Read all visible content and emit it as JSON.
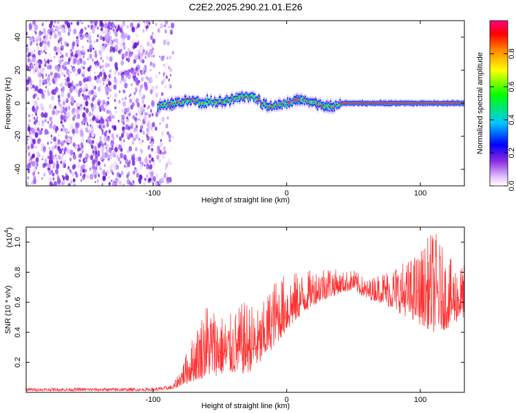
{
  "title": "C2E2.2025.290.21.01.E26",
  "chart_data": [
    {
      "type": "heatmap",
      "title": "C2E2.2025.290.21.01.E26",
      "xlabel": "Height of straight line (km)",
      "ylabel": "Frequency (Hz)",
      "xlim": [
        -195,
        133
      ],
      "ylim": [
        -50,
        50
      ],
      "xticks": [
        -100,
        0,
        100
      ],
      "xtick_labels": [
        "-100",
        "0",
        "100"
      ],
      "yticks": [
        -40,
        -20,
        0,
        20,
        40
      ],
      "ytick_labels": [
        "-40",
        "-20",
        "0",
        "20",
        "40"
      ],
      "colorbar": {
        "label": "Normalized spectral amplitude",
        "range": [
          0,
          1
        ],
        "ticks": [
          0.0,
          0.2,
          0.4,
          0.6,
          0.8
        ],
        "tick_labels": [
          "0.0",
          "0.2",
          "0.4",
          "0.6",
          "0.8"
        ],
        "colormap": [
          "#ffffff",
          "#7a00ff",
          "#0000ff",
          "#00c8ff",
          "#00ff00",
          "#ffff00",
          "#ff8800",
          "#ff0000",
          "#ff0080"
        ]
      },
      "signal_band": {
        "description": "narrow band near 0 Hz",
        "x_start": -97,
        "x_end": 133,
        "center_hz": 0
      },
      "noise_region": [
        -195,
        -85
      ]
    },
    {
      "type": "line",
      "xlabel": "Height of straight line (km)",
      "ylabel": "SNR (10 * v/v)",
      "y_multiplier": "(x10",
      "y_multiplier_exp": "4",
      "y_multiplier_close": ")",
      "xlim": [
        -195,
        133
      ],
      "ylim": [
        0,
        1.1
      ],
      "xticks": [
        -100,
        0,
        100
      ],
      "xtick_labels": [
        "-100",
        "0",
        "100"
      ],
      "yticks": [
        0.2,
        0.4,
        0.6,
        0.8,
        1.0
      ],
      "ytick_labels": [
        "0.2",
        "0.4",
        "0.6",
        "0.8",
        "1.0"
      ],
      "color": "#ff3333",
      "envelope": {
        "x": [
          -195,
          -100,
          -85,
          -80,
          -60,
          -45,
          -30,
          -20,
          -10,
          0,
          10,
          20,
          30,
          40,
          50,
          60,
          70,
          80,
          90,
          100,
          110,
          120,
          133
        ],
        "y_low": [
          0.01,
          0.01,
          0.02,
          0.04,
          0.1,
          0.12,
          0.12,
          0.18,
          0.3,
          0.4,
          0.5,
          0.58,
          0.62,
          0.66,
          0.68,
          0.62,
          0.6,
          0.55,
          0.5,
          0.45,
          0.4,
          0.42,
          0.5
        ],
        "y_high": [
          0.03,
          0.03,
          0.05,
          0.15,
          0.62,
          0.5,
          0.62,
          0.55,
          0.75,
          0.8,
          0.8,
          0.82,
          0.86,
          0.8,
          0.82,
          0.75,
          0.8,
          0.85,
          0.88,
          0.95,
          1.1,
          0.9,
          0.85
        ]
      }
    }
  ]
}
